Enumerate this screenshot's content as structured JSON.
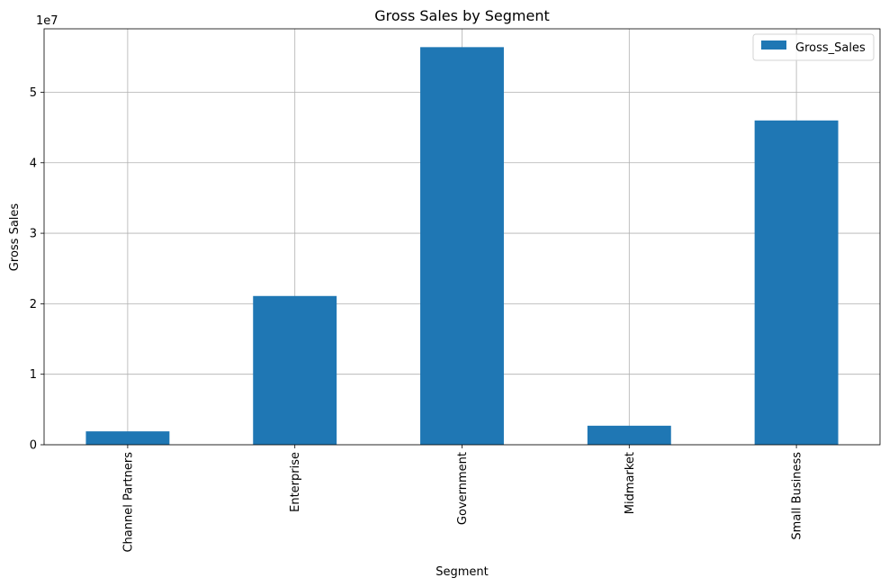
{
  "chart_data": {
    "type": "bar",
    "title": "Gross Sales by Segment",
    "xlabel": "Segment",
    "ylabel": "Gross Sales",
    "y_offset_label": "1e7",
    "categories": [
      "Channel Partners",
      "Enterprise",
      "Government",
      "Midmarket",
      "Small Business"
    ],
    "series": [
      {
        "name": "Gross_Sales",
        "values": [
          1900000,
          21100000,
          56400000,
          2700000,
          46000000
        ]
      }
    ],
    "ylim": [
      0,
      59000000
    ],
    "y_ticks": [
      0,
      1,
      2,
      3,
      4,
      5
    ],
    "y_tick_scale": 10000000,
    "grid": true,
    "legend_position": "top-right",
    "colors": {
      "bar": "#1f77b4",
      "grid": "#b0b0b0",
      "axis": "#000000"
    }
  }
}
